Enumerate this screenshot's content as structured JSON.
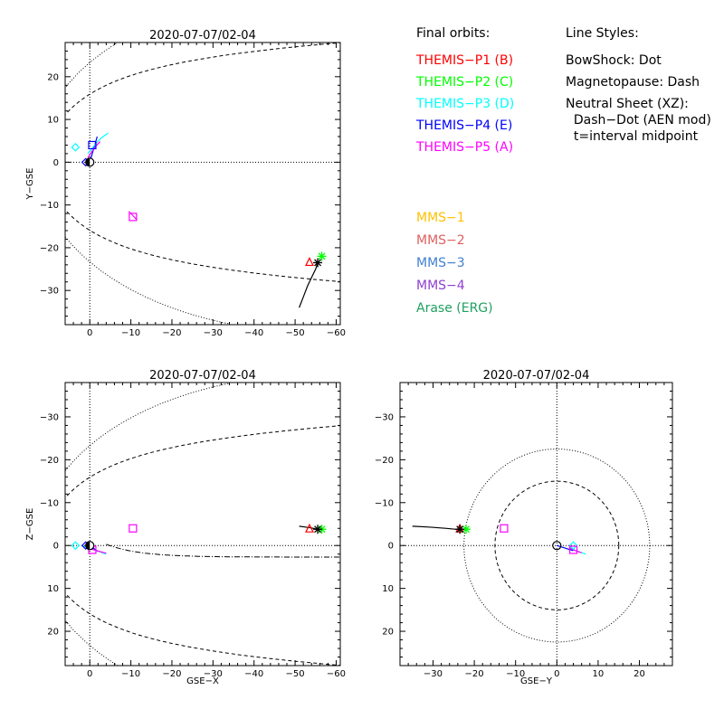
{
  "legend": {
    "orbits_heading": "Final orbits:",
    "styles_heading": "Line Styles:",
    "themis": [
      {
        "label": "THEMIS−P1 (B)",
        "color": "#ff0000"
      },
      {
        "label": "THEMIS−P2 (C)",
        "color": "#00ff00"
      },
      {
        "label": "THEMIS−P3 (D)",
        "color": "#00ffff"
      },
      {
        "label": "THEMIS−P4 (E)",
        "color": "#0000ff"
      },
      {
        "label": "THEMIS−P5 (A)",
        "color": "#ff00ff"
      }
    ],
    "others": [
      {
        "label": "MMS−1",
        "color": "#ffc000"
      },
      {
        "label": "MMS−2",
        "color": "#e06060"
      },
      {
        "label": "MMS−3",
        "color": "#4080d0"
      },
      {
        "label": "MMS−4",
        "color": "#9040d0"
      },
      {
        "label": "Arase (ERG)",
        "color": "#20a060"
      }
    ],
    "styles": [
      "BowShock: Dot",
      "Magnetopause: Dash",
      "Neutral Sheet (XZ):",
      "  Dash−Dot (AEN mod)",
      "  t=interval midpoint"
    ]
  },
  "chart_data": [
    {
      "id": "xy",
      "type": "line",
      "title": "2020-07-07/02-04",
      "xlabel": "",
      "ylabel": "Y−GSE",
      "xlim": [
        6,
        -61
      ],
      "ylim": [
        28,
        -38
      ],
      "xticks": [
        0,
        -10,
        -20,
        -30,
        -40,
        -50,
        -60
      ],
      "yticks": [
        -30,
        -20,
        -10,
        0,
        10,
        20
      ],
      "tick_labels_x": [
        "0",
        "−10",
        "−20",
        "−30",
        "−40",
        "−50",
        "−60"
      ],
      "tick_labels_y": [
        "−30",
        "−20",
        "−10",
        "0",
        "10",
        "20"
      ],
      "series": [
        {
          "color": "#000000",
          "style": "solid",
          "x": [
            -51,
            -52,
            -53,
            -54,
            -55,
            -55.5
          ],
          "y": [
            -34,
            -31.5,
            -29,
            -27,
            -25,
            -23.5
          ]
        },
        {
          "color": "#0000ff",
          "style": "solid",
          "x": [
            0,
            -0.6,
            -1.2,
            -1.8
          ],
          "y": [
            0,
            2,
            4,
            6
          ]
        },
        {
          "color": "#00ffff",
          "style": "solid",
          "x": [
            0.5,
            -0.5,
            -1.5,
            -2.5,
            -3.5,
            -4.5
          ],
          "y": [
            2,
            3.2,
            4.4,
            5.4,
            6.2,
            6.8
          ]
        },
        {
          "color": "#ff00ff",
          "style": "solid",
          "x": [
            0.5,
            -0.5,
            -1.5,
            -2.5
          ],
          "y": [
            1,
            2.5,
            3.8,
            4.8
          ]
        },
        {
          "color": "#ff00ff",
          "style": "solid",
          "x": [
            -9.5,
            -10.2,
            -10.8,
            -11.4
          ],
          "y": [
            -11.5,
            -12.2,
            -12.8,
            -13.4
          ]
        }
      ],
      "markers": [
        {
          "shape": "triangle",
          "color": "#ff0000",
          "x": -53.5,
          "y": -23.5
        },
        {
          "shape": "asterisk",
          "color": "#00ff00",
          "x": -56.5,
          "y": -22
        },
        {
          "shape": "asterisk",
          "color": "#000000",
          "x": -55.5,
          "y": -23.5
        },
        {
          "shape": "diamond",
          "color": "#00ffff",
          "x": 3.5,
          "y": 3.5
        },
        {
          "shape": "diamond",
          "color": "#0000ff",
          "x": 1,
          "y": 0
        },
        {
          "shape": "square",
          "color": "#0000ff",
          "x": -0.6,
          "y": 4
        },
        {
          "shape": "square",
          "color": "#ff00ff",
          "x": -10.5,
          "y": -12.8
        },
        {
          "shape": "earth",
          "color": "#000000",
          "x": 0,
          "y": 0
        }
      ]
    },
    {
      "id": "xz",
      "type": "line",
      "title": "2020-07-07/02-04",
      "xlabel": "GSE−X",
      "ylabel": "Z−GSE",
      "xlim": [
        6,
        -61
      ],
      "ylim": [
        -38,
        28
      ],
      "xticks": [
        0,
        -10,
        -20,
        -30,
        -40,
        -50,
        -60
      ],
      "yticks": [
        -30,
        -20,
        -10,
        0,
        10,
        20
      ],
      "tick_labels_x": [
        "0",
        "−10",
        "−20",
        "−30",
        "−40",
        "−50",
        "−60"
      ],
      "tick_labels_y": [
        "−30",
        "−20",
        "−10",
        "0",
        "10",
        "20"
      ],
      "series": [
        {
          "color": "#000000",
          "style": "solid",
          "x": [
            -51,
            -52.5,
            -54,
            -55.5
          ],
          "y": [
            -4.5,
            -4.3,
            -4.1,
            -3.8
          ]
        },
        {
          "color": "#0000ff",
          "style": "solid",
          "x": [
            0,
            -1,
            -2
          ],
          "y": [
            0,
            0.7,
            1.4
          ]
        },
        {
          "color": "#00ffff",
          "style": "solid",
          "x": [
            2,
            0,
            -2,
            -4
          ],
          "y": [
            0,
            0.7,
            1.3,
            2
          ]
        },
        {
          "color": "#ff00ff",
          "style": "solid",
          "x": [
            1,
            -1,
            -2.5,
            -4
          ],
          "y": [
            0.5,
            1,
            1.4,
            1.8
          ]
        }
      ],
      "markers": [
        {
          "shape": "triangle",
          "color": "#ff0000",
          "x": -53.5,
          "y": -3.8
        },
        {
          "shape": "asterisk",
          "color": "#00ff00",
          "x": -56.5,
          "y": -3.8
        },
        {
          "shape": "asterisk",
          "color": "#000000",
          "x": -55.5,
          "y": -3.8
        },
        {
          "shape": "diamond",
          "color": "#00ffff",
          "x": 3.5,
          "y": 0
        },
        {
          "shape": "diamond",
          "color": "#0000ff",
          "x": 1,
          "y": 0
        },
        {
          "shape": "square",
          "color": "#ff00ff",
          "x": -0.6,
          "y": 1
        },
        {
          "shape": "square",
          "color": "#ff00ff",
          "x": -10.5,
          "y": -4
        },
        {
          "shape": "earth",
          "color": "#000000",
          "x": 0,
          "y": 0
        }
      ]
    },
    {
      "id": "yz",
      "type": "line",
      "title": "2020-07-07/02-04",
      "xlabel": "GSE−Y",
      "ylabel": "",
      "xlim": [
        -38,
        28
      ],
      "ylim": [
        -38,
        28
      ],
      "xticks": [
        -30,
        -20,
        -10,
        0,
        10,
        20
      ],
      "yticks": [
        -30,
        -20,
        -10,
        0,
        10,
        20
      ],
      "tick_labels_x": [
        "−30",
        "−20",
        "−10",
        "0",
        "10",
        "20"
      ],
      "tick_labels_y": [
        "−30",
        "−20",
        "−10",
        "0",
        "10",
        "20"
      ],
      "circles": [
        {
          "r": 22.5,
          "style": "dot"
        },
        {
          "r": 15,
          "style": "dash"
        }
      ],
      "series": [
        {
          "color": "#000000",
          "style": "solid",
          "x": [
            -35,
            -31,
            -27,
            -23.5
          ],
          "y": [
            -4.5,
            -4.3,
            -4,
            -3.7
          ]
        },
        {
          "color": "#0000ff",
          "style": "solid",
          "x": [
            0,
            2,
            4
          ],
          "y": [
            0,
            0.6,
            1.2
          ]
        },
        {
          "color": "#00ffff",
          "style": "solid",
          "x": [
            3,
            4,
            5.5,
            7
          ],
          "y": [
            0.2,
            0.9,
            1.5,
            2
          ]
        },
        {
          "color": "#ff00ff",
          "style": "solid",
          "x": [
            3,
            4.5,
            6
          ],
          "y": [
            0.6,
            1.2,
            1.7
          ]
        }
      ],
      "markers": [
        {
          "shape": "triangle",
          "color": "#ff0000",
          "x": -23.5,
          "y": -3.8
        },
        {
          "shape": "asterisk",
          "color": "#00ff00",
          "x": -22,
          "y": -3.8
        },
        {
          "shape": "asterisk",
          "color": "#000000",
          "x": -23.5,
          "y": -3.8
        },
        {
          "shape": "diamond",
          "color": "#00ffff",
          "x": 4,
          "y": 0
        },
        {
          "shape": "square",
          "color": "#ff00ff",
          "x": 4,
          "y": 1
        },
        {
          "shape": "square",
          "color": "#ff00ff",
          "x": -12.8,
          "y": -4
        },
        {
          "shape": "earth-open",
          "color": "#000000",
          "x": 0,
          "y": 0
        }
      ]
    }
  ]
}
